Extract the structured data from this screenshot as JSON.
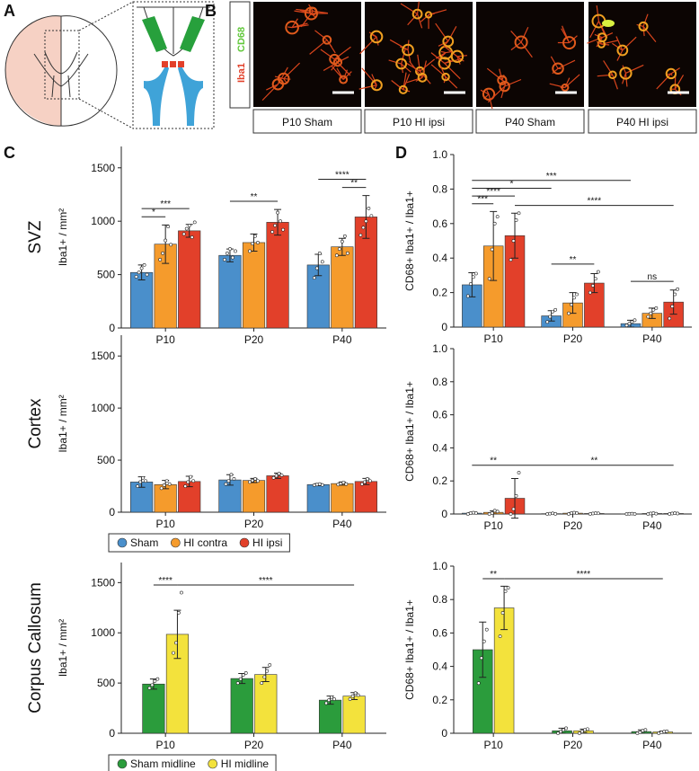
{
  "panel_labels": [
    "A",
    "B",
    "C",
    "D"
  ],
  "stain_labels": [
    "Iba1",
    "CD68"
  ],
  "image_captions": [
    "P10 Sham",
    "P10 HI ipsi",
    "P40 Sham",
    "P40 HI ipsi"
  ],
  "chart_data": [
    {
      "type": "bar",
      "title": "SVZ",
      "ylabel": "Iba1+ / mm²",
      "categories": [
        "P10",
        "P20",
        "P40"
      ],
      "ylim": [
        0,
        1700
      ],
      "yticks": [
        0,
        500,
        1000,
        1500
      ],
      "series": [
        {
          "name": "Sham",
          "color": "#4a8fcb",
          "values": [
            520,
            680,
            590
          ],
          "errors": [
            70,
            60,
            100
          ],
          "points": [
            [
              480,
              520,
              560,
              590,
              500
            ],
            [
              640,
              700,
              740,
              660,
              720
            ],
            [
              470,
              560,
              700,
              620
            ]
          ]
        },
        {
          "name": "HI contra",
          "color": "#f59b2c",
          "values": [
            785,
            800,
            760
          ],
          "errors": [
            180,
            80,
            80
          ],
          "points": [
            [
              640,
              700,
              820,
              950,
              780
            ],
            [
              720,
              790,
              860,
              800
            ],
            [
              680,
              740,
              810,
              860,
              700
            ]
          ]
        },
        {
          "name": "HI ipsi",
          "color": "#e2402a",
          "values": [
            910,
            990,
            1040
          ],
          "errors": [
            60,
            120,
            200
          ],
          "points": [
            [
              880,
              930,
              960,
              850,
              990
            ],
            [
              900,
              960,
              1080,
              1000,
              920
            ],
            [
              870,
              940,
              1000,
              1120,
              1050
            ]
          ]
        }
      ],
      "significance": [
        {
          "label": "*",
          "from": [
            0,
            0
          ],
          "to": [
            0,
            1
          ]
        },
        {
          "label": "***",
          "from": [
            0,
            0
          ],
          "to": [
            0,
            2
          ]
        },
        {
          "label": "**",
          "from": [
            1,
            0
          ],
          "to": [
            1,
            2
          ]
        },
        {
          "label": "**",
          "from": [
            2,
            1
          ],
          "to": [
            2,
            2
          ]
        },
        {
          "label": "****",
          "from": [
            2,
            0
          ],
          "to": [
            2,
            2
          ]
        }
      ]
    },
    {
      "type": "bar",
      "title": "Cortex",
      "ylabel": "Iba1+ / mm²",
      "categories": [
        "P10",
        "P20",
        "P40"
      ],
      "ylim": [
        0,
        1700
      ],
      "yticks": [
        0,
        500,
        1000,
        1500
      ],
      "legend": "below",
      "series": [
        {
          "name": "Sham",
          "color": "#4a8fcb",
          "values": [
            290,
            310,
            265
          ],
          "errors": [
            50,
            50,
            10
          ],
          "points": [
            [
              250,
              290,
              330,
              300
            ],
            [
              270,
              300,
              360,
              320
            ],
            [
              260,
              265,
              270,
              262
            ]
          ]
        },
        {
          "name": "HI contra",
          "color": "#f59b2c",
          "values": [
            265,
            305,
            275
          ],
          "errors": [
            40,
            20,
            15
          ],
          "points": [
            [
              230,
              260,
              300,
              270
            ],
            [
              290,
              305,
              320,
              300
            ],
            [
              265,
              275,
              285,
              270
            ]
          ]
        },
        {
          "name": "HI ipsi",
          "color": "#e2402a",
          "values": [
            295,
            350,
            295
          ],
          "errors": [
            50,
            25,
            30
          ],
          "points": [
            [
              250,
              290,
              340,
              300
            ],
            [
              330,
              350,
              370,
              355
            ],
            [
              270,
              290,
              320,
              300
            ]
          ]
        }
      ],
      "significance": []
    },
    {
      "type": "bar",
      "title": "Corpus Callosum",
      "ylabel": "Iba1+ / mm²",
      "categories": [
        "P10",
        "P20",
        "P40"
      ],
      "ylim": [
        0,
        1700
      ],
      "yticks": [
        0,
        500,
        1000,
        1500
      ],
      "legend": "below",
      "series": [
        {
          "name": "Sham midline",
          "color": "#2b9c3c",
          "values": [
            490,
            545,
            330
          ],
          "errors": [
            50,
            50,
            40
          ],
          "points": [
            [
              450,
              480,
              520,
              540
            ],
            [
              500,
              540,
              580,
              600
            ],
            [
              300,
              330,
              360,
              340
            ]
          ]
        },
        {
          "name": "HI midline",
          "color": "#f3e23c",
          "values": [
            985,
            585,
            370
          ],
          "errors": [
            240,
            70,
            35
          ],
          "points": [
            [
              800,
              900,
              1200,
              1400
            ],
            [
              500,
              560,
              620,
              680
            ],
            [
              340,
              370,
              400,
              380
            ]
          ]
        }
      ],
      "significance": [
        {
          "label": "****",
          "from": [
            0,
            0
          ],
          "to": [
            0,
            1
          ]
        },
        {
          "label": "****",
          "from": [
            0,
            1
          ],
          "to": [
            2,
            1
          ]
        }
      ]
    },
    {
      "type": "bar",
      "ylabel": "CD68+ Iba1+ / Iba1+",
      "categories": [
        "P10",
        "P20",
        "P40"
      ],
      "ylim": [
        0,
        1
      ],
      "yticks": [
        0,
        0.2,
        0.4,
        0.6,
        0.8,
        {
          "value": 1,
          "label": "1.0"
        }
      ],
      "series": [
        {
          "name": "Sham",
          "color": "#4a8fcb",
          "values": [
            0.245,
            0.065,
            0.02
          ],
          "errors": [
            0.07,
            0.03,
            0.02
          ],
          "points": [
            [
              0.18,
              0.25,
              0.29,
              0.31
            ],
            [
              0.03,
              0.06,
              0.09,
              0.1
            ],
            [
              0.01,
              0.02,
              0.03,
              0.04
            ]
          ]
        },
        {
          "name": "HI contra",
          "color": "#f59b2c",
          "values": [
            0.47,
            0.14,
            0.08
          ],
          "errors": [
            0.2,
            0.06,
            0.03
          ],
          "points": [
            [
              0.28,
              0.45,
              0.6,
              0.64
            ],
            [
              0.08,
              0.13,
              0.17,
              0.19
            ],
            [
              0.06,
              0.08,
              0.1,
              0.11
            ]
          ]
        },
        {
          "name": "HI ipsi",
          "color": "#e2402a",
          "values": [
            0.53,
            0.255,
            0.145
          ],
          "errors": [
            0.13,
            0.055,
            0.07
          ],
          "points": [
            [
              0.39,
              0.5,
              0.62,
              0.66
            ],
            [
              0.2,
              0.24,
              0.28,
              0.32
            ],
            [
              0.05,
              0.12,
              0.19,
              0.22
            ]
          ]
        }
      ],
      "significance": [
        {
          "label": "**",
          "from": [
            1,
            0
          ],
          "to": [
            1,
            2
          ]
        },
        {
          "label": "ns",
          "from": [
            2,
            0
          ],
          "to": [
            2,
            2
          ]
        },
        {
          "label": "***",
          "from": [
            0,
            0
          ],
          "to": [
            0,
            1
          ]
        },
        {
          "label": "****",
          "from": [
            0,
            0
          ],
          "to": [
            0,
            2
          ]
        },
        {
          "label": "****",
          "from": [
            0,
            2
          ],
          "to": [
            2,
            2
          ]
        },
        {
          "label": "*",
          "from": [
            0,
            0
          ],
          "to": [
            1,
            0
          ]
        },
        {
          "label": "***",
          "from": [
            0,
            0
          ],
          "to": [
            2,
            0
          ]
        }
      ]
    },
    {
      "type": "bar",
      "ylabel": "CD68+ Iba1+ / Iba1+",
      "categories": [
        "P10",
        "P20",
        "P40"
      ],
      "ylim": [
        0,
        1
      ],
      "yticks": [
        0,
        0.2,
        0.4,
        0.6,
        0.8,
        {
          "value": 1,
          "label": "1.0"
        }
      ],
      "series": [
        {
          "name": "Sham",
          "color": "#4a8fcb",
          "values": [
            0.005,
            0.002,
            0.001
          ],
          "errors": [
            0.004,
            0.002,
            0.001
          ],
          "points": [
            [
              0,
              0.005,
              0.008,
              0.006
            ],
            [
              0,
              0.002,
              0.004,
              0.001
            ],
            [
              0,
              0.001,
              0.002,
              0
            ]
          ]
        },
        {
          "name": "HI contra",
          "color": "#f59b2c",
          "values": [
            0.01,
            0.005,
            0.003
          ],
          "errors": [
            0.01,
            0.004,
            0.003
          ],
          "points": [
            [
              0,
              0.005,
              0.02,
              0.015
            ],
            [
              0,
              0.005,
              0.008,
              0.006
            ],
            [
              0,
              0.003,
              0.005,
              0.002
            ]
          ]
        },
        {
          "name": "HI ipsi",
          "color": "#e2402a",
          "values": [
            0.095,
            0.003,
            0.003
          ],
          "errors": [
            0.12,
            0.003,
            0.003
          ],
          "points": [
            [
              0,
              0.03,
              0.11,
              0.25
            ],
            [
              0,
              0.003,
              0.005,
              0.004
            ],
            [
              0,
              0.003,
              0.005,
              0.003
            ]
          ]
        }
      ],
      "significance": [
        {
          "label": "**",
          "from": [
            0,
            0
          ],
          "to": [
            0,
            2
          ]
        },
        {
          "label": "**",
          "from": [
            0,
            2
          ],
          "to": [
            2,
            2
          ]
        }
      ]
    },
    {
      "type": "bar",
      "ylabel": "CD68+ Iba1+ / Iba1+",
      "categories": [
        "P10",
        "P20",
        "P40"
      ],
      "ylim": [
        0,
        1
      ],
      "yticks": [
        0,
        0.2,
        0.4,
        0.6,
        0.8,
        {
          "value": 1,
          "label": "1.0"
        }
      ],
      "series": [
        {
          "name": "Sham midline",
          "color": "#2b9c3c",
          "values": [
            0.5,
            0.015,
            0.01
          ],
          "errors": [
            0.165,
            0.015,
            0.01
          ],
          "points": [
            [
              0.3,
              0.45,
              0.55,
              0.62
            ],
            [
              0,
              0.01,
              0.02,
              0.03
            ],
            [
              0,
              0.005,
              0.015,
              0.02
            ]
          ]
        },
        {
          "name": "HI midline",
          "color": "#f3e23c",
          "values": [
            0.75,
            0.015,
            0.008
          ],
          "errors": [
            0.13,
            0.01,
            0.005
          ],
          "points": [
            [
              0.58,
              0.72,
              0.85,
              0.87
            ],
            [
              0,
              0.01,
              0.02,
              0.025
            ],
            [
              0,
              0.005,
              0.01,
              0.012
            ]
          ]
        }
      ],
      "significance": [
        {
          "label": "**",
          "from": [
            0,
            0
          ],
          "to": [
            0,
            1
          ]
        },
        {
          "label": "****",
          "from": [
            0,
            1
          ],
          "to": [
            2,
            1
          ]
        }
      ]
    }
  ]
}
